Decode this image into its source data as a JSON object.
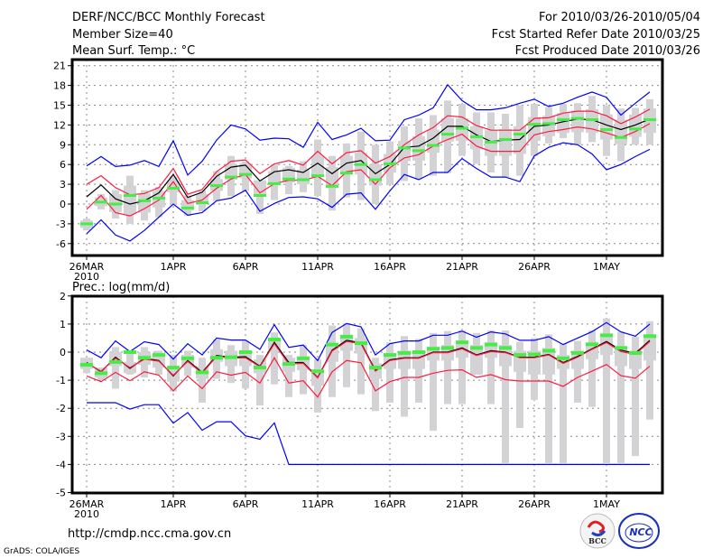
{
  "header": {
    "title": "DERF/NCC/BCC Monthly Forecast",
    "member_size": "Member Size=40",
    "variable_top": "Mean Surf. Temp.: °C",
    "period": "For 2010/03/26-2010/05/04",
    "refer_date": "Fcst Started Refer Date 2010/03/25",
    "produced_date": "Fcst Produced Date 2010/03/26"
  },
  "footer": {
    "url": "http://cmdp.ncc.cma.gov.cn",
    "grads": "GrADS: COLA/IGES",
    "logo_bcc": "BCC",
    "logo_ncc": "NCC"
  },
  "colors": {
    "mean": "#000000",
    "spread": "#ff1a40",
    "extreme": "#0000ff",
    "obs": "#44ee44",
    "box": "#d3d3d6",
    "grid": "#888888"
  },
  "chart_data": [
    {
      "type": "line",
      "title": "Mean Surf. Temp.: °C",
      "days": 40,
      "x_tick_labels": [
        {
          "day": 0,
          "label": "26MAR"
        },
        {
          "day": 6,
          "label": "1APR"
        },
        {
          "day": 11,
          "label": "6APR"
        },
        {
          "day": 16,
          "label": "11APR"
        },
        {
          "day": 21,
          "label": "16APR"
        },
        {
          "day": 26,
          "label": "21APR"
        },
        {
          "day": 31,
          "label": "26APR"
        },
        {
          "day": 36,
          "label": "1MAY"
        }
      ],
      "year_label": "2010",
      "yticks": [
        -6,
        -3,
        0,
        3,
        6,
        9,
        12,
        15,
        18,
        21
      ],
      "ylim": [
        -7.8,
        22.5
      ],
      "grid": true,
      "series": [
        {
          "name": "ensemble_mean",
          "color": "#000000",
          "values": [
            1.1,
            2.9,
            0.8,
            0,
            0.5,
            1.7,
            4.5,
            1,
            1.8,
            4.2,
            5.6,
            5.9,
            3.5,
            4.9,
            5.2,
            4.8,
            6.2,
            4.6,
            6.2,
            6.6,
            4.6,
            6,
            8.6,
            8.8,
            10,
            11.8,
            11.8,
            10.5,
            9.5,
            9.7,
            9.8,
            11.8,
            12,
            12.5,
            12.9,
            12.8,
            12,
            11.3,
            12,
            12.9
          ]
        },
        {
          "name": "upper_spread",
          "color": "#ff1a40",
          "values": [
            3,
            4.3,
            2.5,
            1.4,
            1.6,
            2.5,
            5.4,
            1.5,
            2.2,
            4.9,
            6.5,
            6.7,
            4.6,
            6.1,
            6.6,
            5.9,
            8,
            6.1,
            7.8,
            8.1,
            6.2,
            7.2,
            9,
            10.5,
            11.6,
            13.4,
            13.2,
            11.9,
            11.2,
            11.2,
            11.2,
            13,
            13.1,
            13.8,
            14.1,
            14.1,
            13.4,
            12.2,
            13.2,
            14.4
          ]
        },
        {
          "name": "lower_spread",
          "color": "#ff1a40",
          "values": [
            -0.8,
            1.3,
            -1.3,
            -1.8,
            -0.7,
            0.6,
            3.4,
            0.1,
            0.6,
            2.4,
            3.8,
            4.5,
            1.7,
            3.1,
            3.6,
            3.6,
            4.2,
            2.8,
            4.9,
            5.2,
            3,
            5.5,
            7,
            7.5,
            8.8,
            9.8,
            10.6,
            8.8,
            8,
            8,
            8,
            10.5,
            11,
            11.3,
            11.7,
            11.4,
            10.8,
            10.1,
            11,
            12.2
          ]
        },
        {
          "name": "maximum",
          "color": "#0000ff",
          "values": [
            5.8,
            7.2,
            5.7,
            5.9,
            6.6,
            5.7,
            9.6,
            4.4,
            6.5,
            9.7,
            12,
            11.4,
            9.7,
            10,
            9.9,
            8.6,
            12.4,
            9.8,
            10.5,
            11.5,
            9.6,
            9.7,
            12.8,
            13.5,
            14.6,
            18.1,
            15.7,
            14.3,
            14.3,
            14.6,
            15.3,
            15.9,
            14.8,
            15.3,
            16.2,
            17,
            16.2,
            13.5,
            15.3,
            17
          ]
        },
        {
          "name": "minimum",
          "color": "#0000ff",
          "values": [
            -4.5,
            -2.4,
            -4.7,
            -5.6,
            -4,
            -2,
            0,
            -1.7,
            -1.3,
            0.5,
            0.9,
            2.1,
            -1.1,
            0.1,
            1,
            1.1,
            0.8,
            -0.5,
            1.5,
            1.7,
            -0.8,
            2,
            4.5,
            3.7,
            4.8,
            4.8,
            6.9,
            5.4,
            4.1,
            4.1,
            3.4,
            7.3,
            8.6,
            9.3,
            9,
            7.6,
            5.2,
            6,
            7.2,
            8.3
          ]
        },
        {
          "name": "observed",
          "color": "#44ee44",
          "values": [
            -3,
            0.3,
            0,
            1.3,
            0.5,
            0.9,
            2.4,
            -0.6,
            0.2,
            2.8,
            4.1,
            4.5,
            1.3,
            3.1,
            3.8,
            3.7,
            4.3,
            2.7,
            4.7,
            6,
            3.7,
            6.1,
            8.5,
            8.1,
            8.9,
            10.6,
            11.5,
            10.2,
            9.4,
            9.8,
            10.6,
            12.1,
            12.2,
            12.8,
            13,
            12.8,
            11.3,
            10.1,
            11.4,
            12.8
          ]
        }
      ],
      "boxes": {
        "whisker_low": [
          -4,
          -0.8,
          -2.2,
          -3,
          -2.5,
          -2,
          0,
          -1.8,
          -1.1,
          0.5,
          1.2,
          2,
          -1.5,
          0.6,
          1.5,
          1.8,
          1.2,
          -1,
          1,
          0.6,
          0,
          3,
          3.5,
          3.8,
          4.3,
          4.7,
          7.3,
          6.1,
          4.8,
          4.1,
          4.3,
          7.3,
          9.2,
          10,
          9,
          9.4,
          7.3,
          6.5,
          9,
          9
        ],
        "whisker_high": [
          -2.2,
          1.5,
          2.1,
          4.3,
          2.1,
          2.6,
          4.2,
          1.3,
          2.1,
          5,
          7.3,
          6.5,
          2,
          6,
          5.8,
          6.5,
          9.8,
          7.3,
          9.2,
          11,
          9,
          9.5,
          11.8,
          13,
          13.5,
          15.7,
          15.2,
          13.9,
          13.9,
          13.7,
          15,
          15.2,
          14.7,
          15.2,
          15.3,
          16.4,
          15,
          14.5,
          14.6,
          15.9
        ],
        "q1": [
          -3.6,
          -0.3,
          -1.2,
          -1.5,
          -1.3,
          -0.5,
          1.8,
          -1,
          0,
          2,
          3.7,
          3.9,
          1.2,
          2.9,
          3.3,
          3,
          4.4,
          2.4,
          4.5,
          4.5,
          2.8,
          4.8,
          6.5,
          6.6,
          7.8,
          9.5,
          9.6,
          8.3,
          7.3,
          7.3,
          7.6,
          9.6,
          10.3,
          10.8,
          10.9,
          10.8,
          9.8,
          9.1,
          10.2,
          10.8
        ],
        "q3": [
          -2.5,
          1,
          1.5,
          2.8,
          1.6,
          2,
          3.5,
          0.6,
          1.5,
          3.8,
          6,
          6.2,
          3.6,
          5,
          5.5,
          5.2,
          7.3,
          5.6,
          7.3,
          7.8,
          6,
          7.6,
          9.6,
          10.3,
          11.3,
          13,
          13,
          11.8,
          11.2,
          11.4,
          11.8,
          13.2,
          13.4,
          13.8,
          14.2,
          14.4,
          13.6,
          12.8,
          13.6,
          14.5
        ]
      }
    },
    {
      "type": "line",
      "title": "Prec.: log(mm/d)",
      "days": 40,
      "x_tick_labels": [
        {
          "day": 0,
          "label": "26MAR"
        },
        {
          "day": 6,
          "label": "1APR"
        },
        {
          "day": 11,
          "label": "6APR"
        },
        {
          "day": 16,
          "label": "11APR"
        },
        {
          "day": 21,
          "label": "16APR"
        },
        {
          "day": 26,
          "label": "21APR"
        },
        {
          "day": 31,
          "label": "26APR"
        },
        {
          "day": 36,
          "label": "1MAY"
        }
      ],
      "year_label": "2010",
      "yticks": [
        -5,
        -4,
        -3,
        -2,
        -1,
        0,
        1,
        2
      ],
      "ylim": [
        -5,
        2
      ],
      "grid": true,
      "series": [
        {
          "name": "ensemble_mean",
          "color": "#000000",
          "values": [
            -0.37,
            -0.7,
            -0.18,
            -0.58,
            -0.22,
            -0.3,
            -0.85,
            -0.3,
            -0.72,
            -0.12,
            -0.18,
            -0.16,
            -0.5,
            0.35,
            -0.37,
            -0.37,
            -0.9,
            0.07,
            0.42,
            0.33,
            -0.65,
            -0.27,
            -0.2,
            -0.2,
            0,
            0,
            0.15,
            -0.1,
            0.05,
            0,
            -0.18,
            -0.18,
            -0.08,
            -0.37,
            -0.15,
            0.12,
            0.38,
            0.07,
            -0.04,
            0.42
          ]
        },
        {
          "name": "upper_spread",
          "color": "#ff1a40",
          "values": [
            -0.4,
            -0.68,
            -0.22,
            -0.55,
            -0.25,
            -0.32,
            -0.82,
            -0.33,
            -0.75,
            -0.15,
            -0.22,
            -0.2,
            -0.52,
            0.3,
            -0.42,
            -0.4,
            -0.92,
            0.04,
            0.38,
            0.3,
            -0.68,
            -0.3,
            -0.22,
            -0.22,
            -0.02,
            -0.02,
            0.12,
            -0.12,
            0.02,
            -0.02,
            -0.2,
            -0.2,
            -0.1,
            -0.4,
            -0.18,
            0.1,
            0.34,
            0.02,
            -0.08,
            0.38
          ]
        },
        {
          "name": "lower_spread",
          "color": "#ff1a40",
          "values": [
            -0.85,
            -1.05,
            -0.72,
            -1.02,
            -0.7,
            -0.82,
            -1.38,
            -0.85,
            -1.3,
            -0.7,
            -0.82,
            -0.72,
            -1.1,
            -0.2,
            -1.1,
            -1.02,
            -1.6,
            -0.7,
            -0.3,
            -0.38,
            -1.38,
            -1.05,
            -0.9,
            -0.9,
            -0.75,
            -0.65,
            -0.63,
            -0.9,
            -0.8,
            -0.98,
            -1.03,
            -1.03,
            -1.03,
            -1.22,
            -0.9,
            -0.68,
            -0.44,
            -0.84,
            -0.93,
            -0.5
          ]
        },
        {
          "name": "maximum",
          "color": "#0000ff",
          "values": [
            0.08,
            -0.2,
            0.4,
            0.02,
            0.37,
            0.27,
            -0.25,
            0.3,
            -0.1,
            0.5,
            0.43,
            0.43,
            0.1,
            0.98,
            0.17,
            0.25,
            -0.3,
            0.7,
            1.02,
            0.9,
            -0.1,
            0.3,
            0.4,
            0.4,
            0.6,
            0.6,
            0.75,
            0.53,
            0.72,
            0.65,
            0.42,
            0.42,
            0.55,
            0.27,
            0.5,
            0.73,
            1.05,
            0.72,
            0.57,
            1.0
          ]
        },
        {
          "name": "minimum",
          "color": "#0000ff",
          "values": [
            -1.8,
            -1.8,
            -1.8,
            -2.03,
            -1.87,
            -1.87,
            -2.53,
            -2.15,
            -2.78,
            -2.48,
            -2.48,
            -2.98,
            -3.1,
            -2.52,
            -4,
            -4,
            -4,
            -4,
            -4,
            -4,
            -4,
            -4,
            -4,
            -4,
            -4,
            -4,
            -4,
            -4,
            -4,
            -4,
            -4,
            -4,
            -4,
            -4,
            -4,
            -4,
            -4,
            -4,
            -4,
            -4
          ]
        },
        {
          "name": "observed",
          "color": "#44ee44",
          "values": [
            -0.45,
            -0.75,
            -0.35,
            0,
            -0.2,
            -0.1,
            -0.55,
            -0.22,
            -0.72,
            -0.2,
            -0.18,
            0,
            -0.55,
            0.45,
            -0.42,
            -0.22,
            -0.68,
            0.27,
            0.55,
            0.32,
            -0.55,
            -0.1,
            -0.03,
            0,
            0.12,
            0.15,
            0.35,
            0.15,
            0.27,
            0.15,
            -0.1,
            -0.08,
            0.05,
            -0.22,
            -0.03,
            0.28,
            0.6,
            0.15,
            -0.03,
            0.57
          ]
        }
      ],
      "boxes": {
        "whisker_low": [
          -0.75,
          -1,
          -1.3,
          -0.8,
          -0.9,
          -0.8,
          -1.4,
          -0.85,
          -1.8,
          -0.95,
          -1.1,
          -1.3,
          -1.9,
          -1.15,
          -1.6,
          -1.5,
          -2.15,
          -1.6,
          -1.25,
          -1.5,
          -2.1,
          -1.8,
          -2.3,
          -1.8,
          -2.8,
          -1.85,
          -1.85,
          -0.8,
          -1.85,
          -3.95,
          -2.7,
          -1.7,
          -3.95,
          -3.95,
          -1.8,
          -1.95,
          -3.95,
          -3.95,
          -3.7,
          -2.4
        ],
        "whisker_high": [
          -0.25,
          -0.6,
          0.18,
          0,
          0.18,
          0.05,
          -0.1,
          0.05,
          -0.2,
          0.45,
          0.25,
          0.4,
          -0.1,
          0.7,
          -0.1,
          0.25,
          -0.25,
          0.95,
          1.02,
          0.85,
          -0.2,
          0.35,
          0.57,
          0.47,
          0.68,
          0.75,
          0.77,
          0.68,
          0.77,
          0.77,
          0.37,
          0.5,
          0.63,
          0.3,
          0.4,
          0.77,
          1.2,
          0.73,
          0.55,
          1.1
        ],
        "q1": [
          -0.6,
          -0.9,
          -0.5,
          -0.75,
          -0.45,
          -0.55,
          -1.05,
          -0.55,
          -0.95,
          -0.35,
          -0.5,
          -0.5,
          -0.75,
          0.05,
          -0.7,
          -0.65,
          -1.2,
          -0.35,
          0.05,
          -0.05,
          -0.95,
          -0.6,
          -0.6,
          -0.6,
          -0.3,
          -0.3,
          -0.2,
          -0.8,
          -0.2,
          -0.5,
          -0.7,
          -0.8,
          -0.8,
          -0.6,
          -0.6,
          -0.25,
          -0.1,
          -0.5,
          -0.6,
          -0.3
        ],
        "q3": [
          -0.2,
          -0.55,
          0,
          -0.35,
          0,
          -0.1,
          -0.6,
          -0.1,
          -0.5,
          0.1,
          0.05,
          0.05,
          -0.25,
          0.5,
          -0.2,
          -0.15,
          -0.65,
          0.3,
          0.6,
          0.5,
          -0.4,
          -0.05,
          0.05,
          0,
          0.2,
          0.25,
          0.35,
          0.25,
          0.35,
          0.25,
          0.05,
          0.05,
          0.15,
          -0.1,
          0.05,
          0.3,
          0.55,
          0.2,
          0.05,
          0.55
        ]
      }
    }
  ]
}
